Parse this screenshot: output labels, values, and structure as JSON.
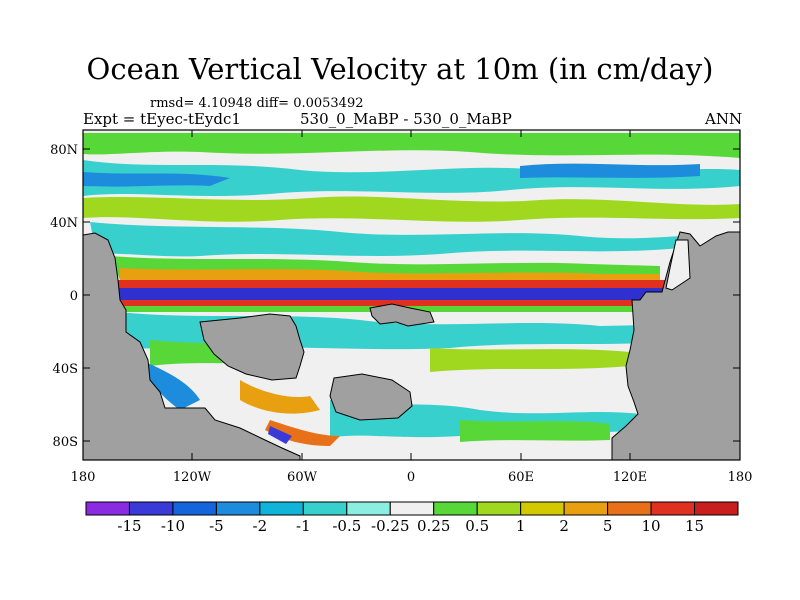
{
  "title": "Ocean Vertical Velocity at 10m (in cm/day)",
  "stats": "rmsd= 4.10948 diff= 0.0053492",
  "experiment": "Expt = tEyec-tEydc1",
  "case": "530_0_MaBP - 530_0_MaBP",
  "season": "ANN",
  "colors": {
    "land": "#a0a0a0",
    "zero_band": "#f0f0f0",
    "strong_up": "#e03020",
    "strong_down": "#3030d0"
  },
  "map": {
    "lat_ticks": [
      "80N",
      "40N",
      "0",
      "40S",
      "80S"
    ],
    "lon_ticks": [
      "180",
      "120W",
      "60W",
      "0",
      "60E",
      "120E",
      "180"
    ]
  },
  "colorbar": {
    "labels": [
      "-15",
      "-10",
      "-5",
      "-2",
      "-1",
      "-0.5",
      "-0.25",
      "0.25",
      "0.5",
      "1",
      "2",
      "5",
      "10",
      "15"
    ],
    "colors": [
      "#8a2be2",
      "#3a3ad8",
      "#1464dc",
      "#1e8cdc",
      "#10b4d8",
      "#38d0cc",
      "#8ceee0",
      "#f0f0f0",
      "#58d838",
      "#a0d820",
      "#d4c800",
      "#e8a010",
      "#e87018",
      "#e03020",
      "#c81e1e"
    ]
  }
}
